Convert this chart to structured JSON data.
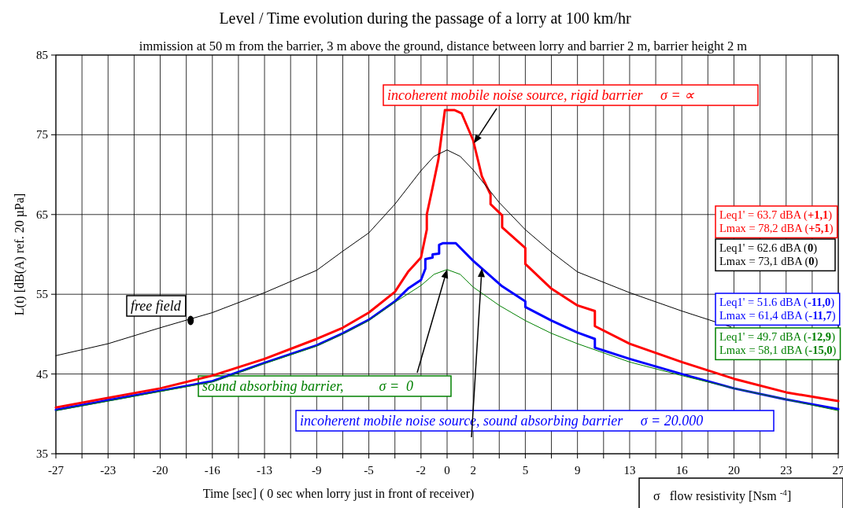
{
  "chart_data": {
    "type": "line",
    "title": "Level / Time evolution during the passage of a lorry at 100 km/hr",
    "subtitle": "immission at 50 m from the barrier, 3 m above the ground, distance between lorry and barrier 2 m, barrier height 2 m",
    "xlabel": "Time [sec] ( 0 sec when lorry just in front of receiver)",
    "ylabel": "L(t) [dB(A) ref. 20 µPa]",
    "xlim": [
      -27,
      27
    ],
    "ylim": [
      35,
      85
    ],
    "xticks": [
      -27,
      {
        "value": -25.2,
        "label": null
      },
      {
        "value": -23.4,
        "label": "-23"
      },
      {
        "value": -21.6,
        "label": null
      },
      {
        "value": -19.8,
        "label": "-20"
      },
      {
        "value": -18,
        "label": null
      },
      {
        "value": -16.2,
        "label": "-16"
      },
      {
        "value": -14.4,
        "label": null
      },
      {
        "value": -12.6,
        "label": "-13"
      },
      {
        "value": -10.8,
        "label": null
      },
      -9,
      {
        "value": -7.2,
        "label": null
      },
      {
        "value": -5.4,
        "label": "-5"
      },
      {
        "value": -3.6,
        "label": null
      },
      {
        "value": -1.8,
        "label": "-2"
      },
      0,
      {
        "value": 1.8,
        "label": "2"
      },
      {
        "value": 3.6,
        "label": null
      },
      {
        "value": 5.4,
        "label": "5"
      },
      {
        "value": 7.2,
        "label": null
      },
      9,
      {
        "value": 10.8,
        "label": null
      },
      {
        "value": 12.6,
        "label": "13"
      },
      {
        "value": 14.4,
        "label": null
      },
      {
        "value": 16.2,
        "label": "16"
      },
      {
        "value": 18,
        "label": null
      },
      {
        "value": 19.8,
        "label": "20"
      },
      {
        "value": 21.6,
        "label": null
      },
      {
        "value": 23.4,
        "label": "23"
      },
      {
        "value": 25.2,
        "label": null
      },
      27
    ],
    "yticks": [
      35,
      45,
      55,
      65,
      75,
      85
    ],
    "grid": true,
    "series": [
      {
        "name": "incoherent mobile noise source, rigid barrier     σ = ∝",
        "color": "#ff0000",
        "x": [
          -27,
          -23.4,
          -19.8,
          -16.2,
          -12.6,
          -9,
          -7.2,
          -5.4,
          -3.6,
          -2.7,
          -1.8,
          -1.4,
          -1.4,
          -1.0,
          -0.6,
          -0.15,
          0.5,
          1.0,
          1.8,
          2.4,
          3.0,
          3.0,
          3.8,
          3.8,
          5.4,
          5.4,
          7.2,
          9,
          10.2,
          10.2,
          12.6,
          16.2,
          19.8,
          23.4,
          27
        ],
        "values": [
          40.8,
          42.0,
          43.2,
          44.8,
          46.9,
          49.4,
          50.8,
          52.7,
          55.3,
          57.8,
          59.6,
          63.1,
          65.0,
          68.4,
          71.9,
          78.1,
          78.1,
          77.7,
          74.3,
          69.8,
          67.5,
          66.3,
          64.9,
          63.4,
          60.8,
          58.8,
          55.7,
          53.6,
          52.9,
          51.0,
          48.8,
          46.5,
          44.4,
          42.7,
          41.6
        ]
      },
      {
        "name": "free field",
        "color": "#000000",
        "x": [
          -27,
          -23.4,
          -19.8,
          -16.2,
          -12.6,
          -9,
          -7.2,
          -5.4,
          -3.6,
          -1.8,
          -0.9,
          0,
          0.9,
          1.8,
          3.6,
          5.4,
          7.2,
          9,
          12.6,
          16.2,
          19.6
        ],
        "values": [
          47.3,
          48.8,
          50.8,
          52.7,
          55.2,
          58.0,
          60.4,
          62.7,
          66.3,
          70.5,
          72.3,
          73.1,
          72.3,
          70.6,
          66.5,
          63.1,
          60.3,
          57.8,
          55.2,
          52.9,
          50.9
        ]
      },
      {
        "name": "incoherent mobile noise source, sound absorbing barrier     σ = 20.000",
        "color": "#0000ff",
        "x": [
          -27,
          -23.4,
          -19.8,
          -16.2,
          -12.6,
          -9,
          -7.2,
          -5.4,
          -3.6,
          -2.7,
          -1.8,
          -1.5,
          -1.5,
          -1.0,
          -1.0,
          -0.55,
          -0.55,
          -0.3,
          0.6,
          1.8,
          3.8,
          5.4,
          5.4,
          7.2,
          9,
          10.2,
          10.2,
          12.6,
          16.2,
          19.8,
          23.4,
          27
        ],
        "values": [
          40.5,
          41.7,
          42.9,
          44.1,
          46.4,
          48.6,
          50.1,
          51.8,
          54.1,
          55.7,
          56.8,
          58.2,
          59.4,
          59.6,
          60.0,
          60.1,
          61.2,
          61.4,
          61.4,
          59.2,
          56.0,
          54.1,
          53.4,
          51.7,
          50.2,
          49.4,
          48.3,
          46.9,
          45.0,
          43.2,
          41.8,
          40.6
        ]
      },
      {
        "name": "sound absorbing barrier,          σ =  0",
        "color": "#008000",
        "x": [
          -27,
          -23.4,
          -19.8,
          -16.2,
          -12.6,
          -9,
          -7.2,
          -5.4,
          -3.6,
          -1.8,
          -0.9,
          0,
          0.9,
          1.8,
          3.6,
          5.4,
          7.2,
          9,
          12.6,
          16.2,
          19.8,
          23.4,
          27
        ],
        "values": [
          40.4,
          41.6,
          42.8,
          44.0,
          46.3,
          48.5,
          50.0,
          51.7,
          54.0,
          56.1,
          57.5,
          58.1,
          57.5,
          55.9,
          53.6,
          51.7,
          50.1,
          48.8,
          46.5,
          44.8,
          43.2,
          41.8,
          40.4
        ]
      }
    ],
    "annotations": [
      "Leq1' = 63.7 dBA (+1,1)\nLmax = 78,2 dBA (+5,1)",
      "Leq1' = 62.6 dBA (0)\nLmax = 73,1 dBA (0)",
      "Leq1' = 51.6 dBA (-11,0)\nLmax = 61,4 dBA (-11,7)",
      "Leq1' = 49.7 dBA (-12,9)\nLmax = 58,1 dBA (-15,0)",
      "σ   flow resistivity [Nsm $^{-4}$]"
    ]
  }
}
